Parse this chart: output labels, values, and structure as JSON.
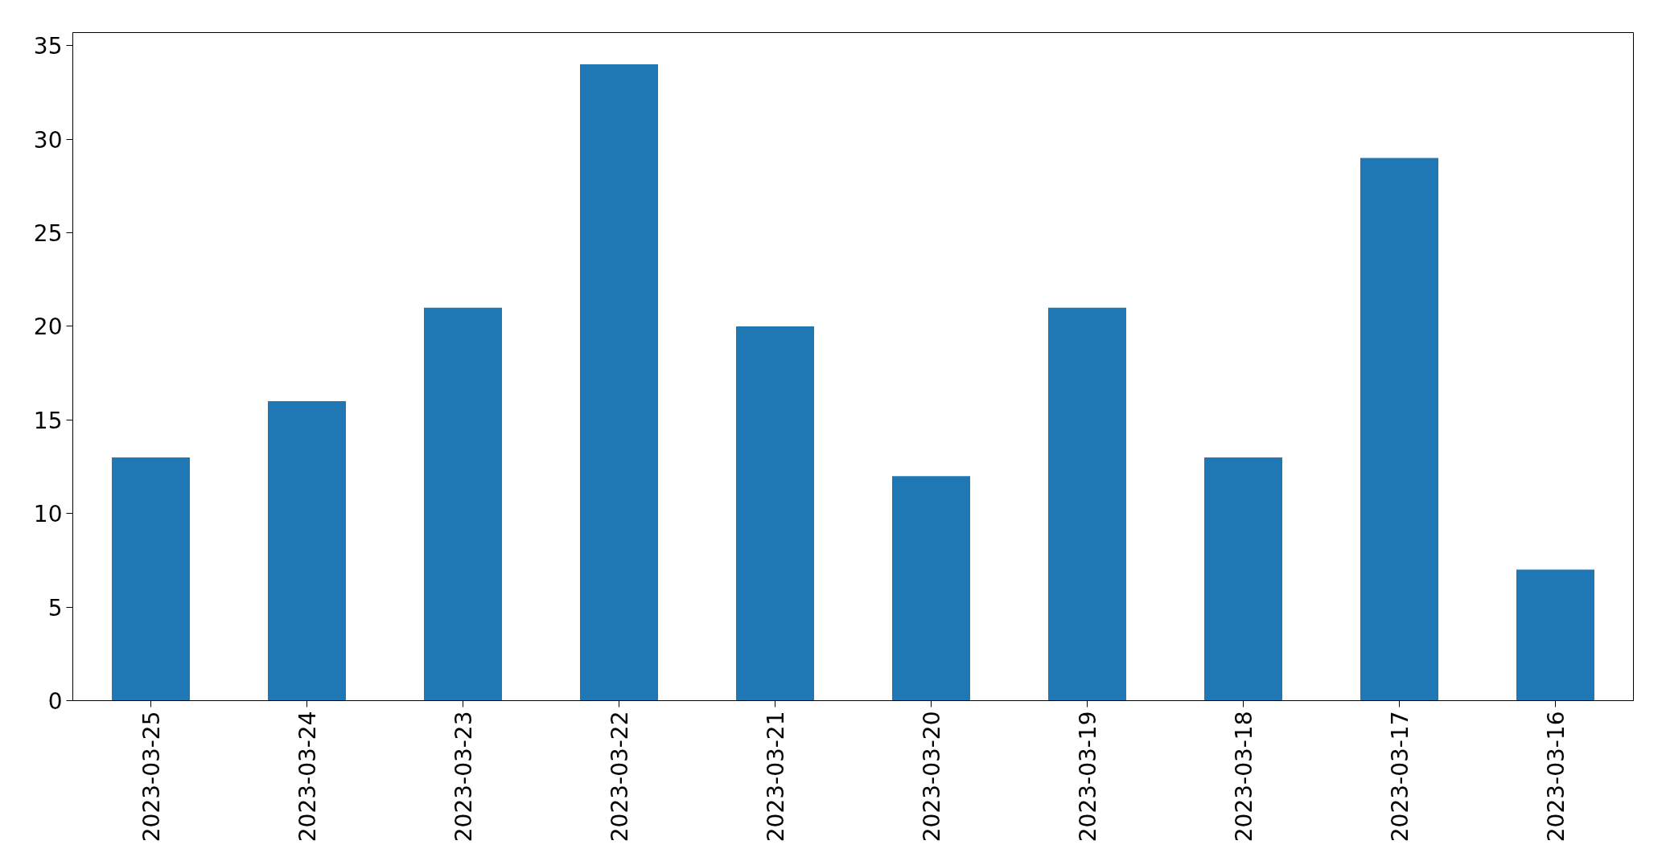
{
  "chart_data": {
    "type": "bar",
    "categories": [
      "2023-03-25",
      "2023-03-24",
      "2023-03-23",
      "2023-03-22",
      "2023-03-21",
      "2023-03-20",
      "2023-03-19",
      "2023-03-18",
      "2023-03-17",
      "2023-03-16"
    ],
    "values": [
      13,
      16,
      21,
      34,
      20,
      12,
      21,
      13,
      29,
      7
    ],
    "color": "#1f77b4",
    "ylim": [
      0,
      35.7
    ],
    "yticks": [
      0,
      5,
      10,
      15,
      20,
      25,
      30,
      35
    ],
    "grid": false
  }
}
